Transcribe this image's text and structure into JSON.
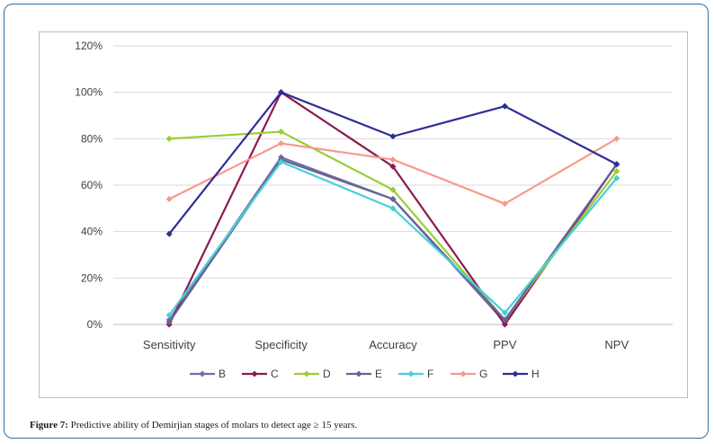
{
  "caption": {
    "label": "Figure 7:",
    "text": " Predictive ability of Demirjian stages of molars to detect age ≥ 15 years."
  },
  "chart_data": {
    "type": "line",
    "categories": [
      "Sensitivity",
      "Specificity",
      "Accuracy",
      "PPV",
      "NPV"
    ],
    "ylim": [
      0,
      120
    ],
    "yticks": [
      "0%",
      "20%",
      "40%",
      "60%",
      "80%",
      "100%",
      "120%"
    ],
    "grid": true,
    "legend_position": "bottom",
    "series": [
      {
        "name": "B",
        "color": "#7070a8",
        "values": [
          2,
          72,
          54,
          1,
          69
        ]
      },
      {
        "name": "C",
        "color": "#8b1a52",
        "values": [
          0,
          100,
          68,
          0,
          69
        ]
      },
      {
        "name": "D",
        "color": "#9acd32",
        "values": [
          80,
          83,
          58,
          2,
          66
        ]
      },
      {
        "name": "E",
        "color": "#646496",
        "values": [
          1,
          71,
          54,
          2,
          69
        ]
      },
      {
        "name": "F",
        "color": "#48cfd8",
        "values": [
          4,
          70,
          50,
          5,
          63
        ]
      },
      {
        "name": "G",
        "color": "#f89a8a",
        "values": [
          54,
          78,
          71,
          52,
          80
        ]
      },
      {
        "name": "H",
        "color": "#2e2e96",
        "values": [
          39,
          100,
          81,
          94,
          69
        ]
      }
    ]
  }
}
